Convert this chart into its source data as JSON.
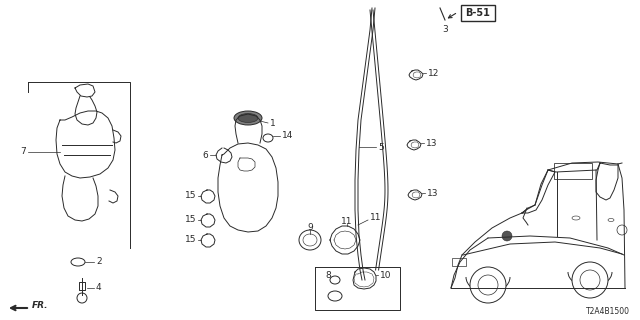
{
  "bg_color": "#ffffff",
  "diagram_code": "T2A4B1500",
  "b51_label": "B-51",
  "color": "#2a2a2a",
  "lw": 0.7,
  "figsize": [
    6.4,
    3.2
  ],
  "dpi": 100
}
